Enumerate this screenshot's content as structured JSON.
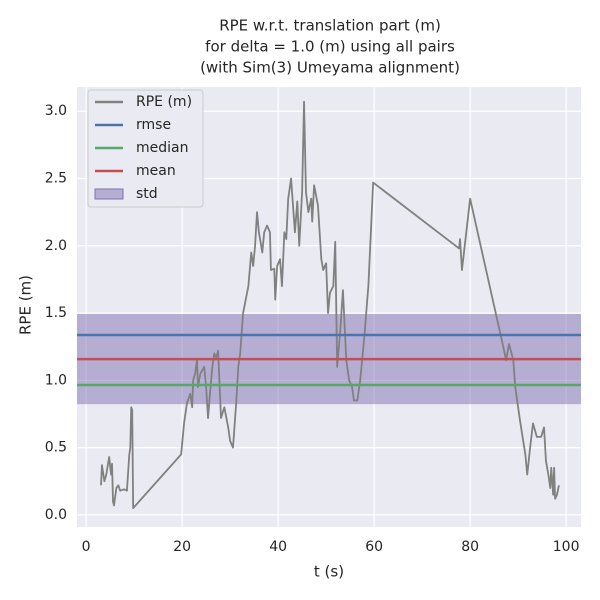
{
  "chart_data": {
    "type": "line",
    "title": [
      "RPE w.r.t. translation part (m)",
      "for delta = 1.0 (m) using all pairs",
      "(with Sim(3) Umeyama alignment)"
    ],
    "xlabel": "t (s)",
    "ylabel": "RPE (m)",
    "series": [
      {
        "name": "RPE (m)",
        "color": "#808080",
        "x": [
          3.1,
          3.3,
          3.8,
          4.2,
          4.8,
          5.2,
          5.4,
          5.6,
          5.8,
          6.3,
          6.7,
          7.1,
          7.9,
          8.5,
          9.0,
          9.2,
          9.4,
          9.6,
          9.8,
          19.8,
          20.4,
          21.0,
          21.7,
          22.1,
          22.3,
          22.7,
          23.1,
          23.3,
          23.8,
          24.6,
          25.0,
          25.4,
          25.8,
          26.3,
          26.7,
          27.1,
          27.5,
          28.1,
          28.8,
          29.6,
          30.0,
          30.6,
          31.3,
          31.7,
          32.1,
          32.7,
          33.8,
          34.4,
          34.8,
          35.2,
          35.6,
          36.0,
          36.7,
          37.1,
          37.7,
          38.3,
          38.5,
          39.2,
          39.4,
          39.8,
          40.4,
          40.8,
          41.3,
          41.7,
          42.1,
          42.7,
          43.1,
          43.5,
          44.0,
          44.4,
          45.0,
          45.4,
          45.8,
          46.3,
          46.9,
          47.1,
          47.5,
          48.3,
          49.0,
          49.4,
          50.0,
          50.4,
          50.8,
          51.5,
          51.9,
          52.3,
          52.9,
          53.5,
          54.2,
          54.8,
          55.4,
          55.8,
          56.5,
          57.1,
          57.9,
          58.8,
          59.8,
          77.7,
          77.9,
          78.3,
          80.0,
          86.9,
          87.5,
          88.1,
          89.0,
          89.4,
          90.4,
          91.5,
          91.9,
          92.5,
          93.1,
          93.9,
          94.8,
          95.4,
          95.8,
          96.3,
          96.7,
          96.9,
          97.3,
          97.5,
          97.7,
          98.1,
          98.5
        ],
        "values": [
          0.22,
          0.37,
          0.25,
          0.3,
          0.43,
          0.3,
          0.38,
          0.1,
          0.07,
          0.2,
          0.22,
          0.18,
          0.19,
          0.18,
          0.45,
          0.5,
          0.8,
          0.78,
          0.05,
          0.45,
          0.68,
          0.83,
          0.9,
          0.8,
          1.0,
          1.05,
          1.15,
          0.95,
          1.05,
          1.1,
          0.95,
          0.72,
          0.9,
          1.1,
          1.2,
          1.17,
          1.22,
          0.72,
          0.8,
          0.65,
          0.55,
          0.5,
          0.85,
          1.1,
          1.2,
          1.5,
          1.7,
          1.95,
          1.85,
          2.0,
          2.25,
          2.1,
          1.95,
          2.1,
          2.15,
          2.1,
          1.82,
          1.83,
          1.6,
          1.85,
          1.9,
          1.7,
          2.1,
          2.05,
          2.35,
          2.5,
          2.3,
          2.1,
          2.33,
          2.0,
          2.4,
          3.07,
          2.4,
          2.25,
          2.35,
          2.18,
          2.45,
          2.3,
          1.9,
          1.82,
          1.87,
          1.5,
          1.65,
          1.7,
          2.03,
          1.1,
          1.35,
          1.67,
          1.15,
          1.0,
          0.95,
          0.85,
          0.85,
          1.0,
          1.3,
          1.7,
          2.47,
          1.98,
          2.05,
          1.82,
          2.35,
          1.25,
          1.15,
          1.27,
          1.15,
          0.95,
          0.7,
          0.45,
          0.3,
          0.5,
          0.68,
          0.58,
          0.58,
          0.65,
          0.4,
          0.3,
          0.2,
          0.35,
          0.15,
          0.35,
          0.12,
          0.15,
          0.22
        ]
      }
    ],
    "stats": [
      {
        "name": "rmse",
        "color": "#4c72b0",
        "value": 1.337
      },
      {
        "name": "median",
        "color": "#55a868",
        "value": 0.965
      },
      {
        "name": "mean",
        "color": "#c44e52",
        "value": 1.158
      },
      {
        "name": "std",
        "color": "#8172b2",
        "value": 0.335
      }
    ],
    "xlim": [
      -1.9,
      103.1
    ],
    "ylim": [
      -0.09,
      3.18
    ],
    "xticks": [
      0,
      20,
      40,
      60,
      80,
      100
    ],
    "yticks": [
      {
        "value": 0,
        "label": "0.0"
      },
      0.5,
      {
        "value": 1,
        "label": "1.0"
      },
      1.5,
      {
        "value": 2,
        "label": "2.0"
      },
      2.5,
      {
        "value": 3,
        "label": "3.0"
      }
    ],
    "grid": true,
    "legend": "upper-left"
  }
}
